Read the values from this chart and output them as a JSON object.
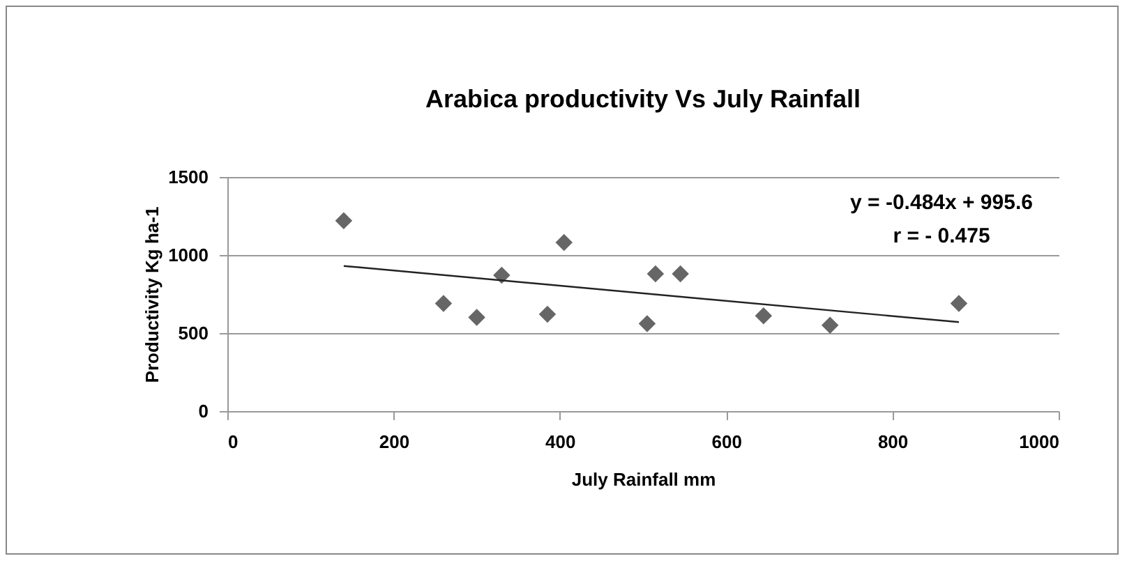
{
  "chart_data": {
    "type": "scatter",
    "title": "Arabica productivity Vs July Rainfall",
    "xlabel": "July Rainfall mm",
    "ylabel": "Productivity Kg ha-1",
    "xlim": [
      0,
      1000
    ],
    "xticks": [
      0,
      200,
      400,
      600,
      800,
      1000
    ],
    "ylim": [
      0,
      1500
    ],
    "yticks": [
      0,
      500,
      1000,
      1500
    ],
    "grid": "y",
    "series": [
      {
        "color": "#666666",
        "marker": "diamond",
        "x": [
          140,
          260,
          300,
          330,
          385,
          405,
          505,
          515,
          545,
          645,
          725,
          880
        ],
        "values": [
          1220,
          690,
          600,
          870,
          620,
          1080,
          560,
          880,
          880,
          610,
          550,
          690
        ]
      },
      {
        "type": "line",
        "color": "#222222",
        "x": [
          140,
          880
        ],
        "values": [
          930,
          570
        ]
      }
    ],
    "annotations": [
      "y = -0.484x + 995.6",
      "r = - 0.475"
    ]
  }
}
